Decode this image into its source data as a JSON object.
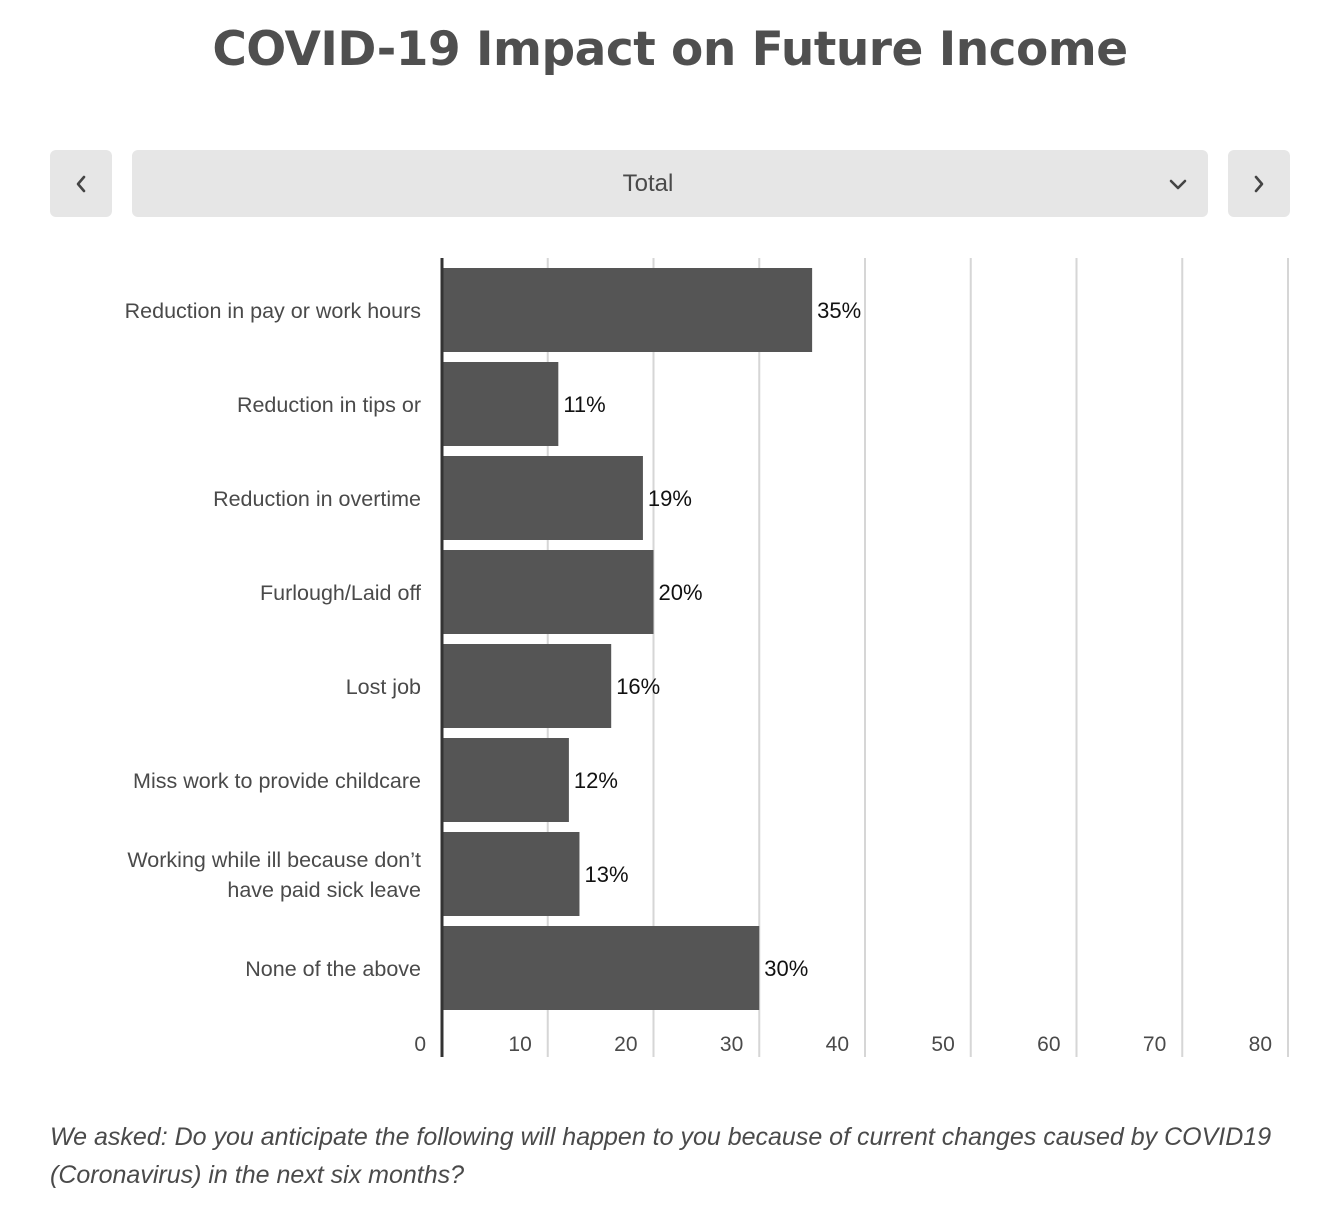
{
  "title": "COVID-19 Impact on Future Income",
  "nav": {
    "prev_icon": "chevron-left-icon",
    "next_icon": "chevron-right-icon",
    "select_value": "Total",
    "select_icon": "chevron-down-icon"
  },
  "chart_data": {
    "type": "bar",
    "orientation": "horizontal",
    "categories": [
      "Reduction in pay or work hours",
      "Reduction in tips or",
      "Reduction in overtime",
      "Furlough/Laid off",
      "Lost job",
      "Miss work to provide childcare",
      "Working while ill because don’t have paid sick leave",
      "None of the above"
    ],
    "values": [
      35,
      11,
      19,
      20,
      16,
      12,
      13,
      30
    ],
    "data_labels": [
      "35%",
      "11%",
      "19%",
      "20%",
      "16%",
      "12%",
      "13%",
      "30%"
    ],
    "xlim": [
      0,
      80
    ],
    "xticks": [
      "0",
      "10",
      "20",
      "30",
      "40",
      "50",
      "60",
      "70",
      "80"
    ],
    "grid": true,
    "bar_color": "#555555",
    "xlabel": "",
    "ylabel": ""
  },
  "caption": "We asked: Do you anticipate the following will happen to you because of current changes caused by COVID19 (Coronavirus) in the next six months?"
}
